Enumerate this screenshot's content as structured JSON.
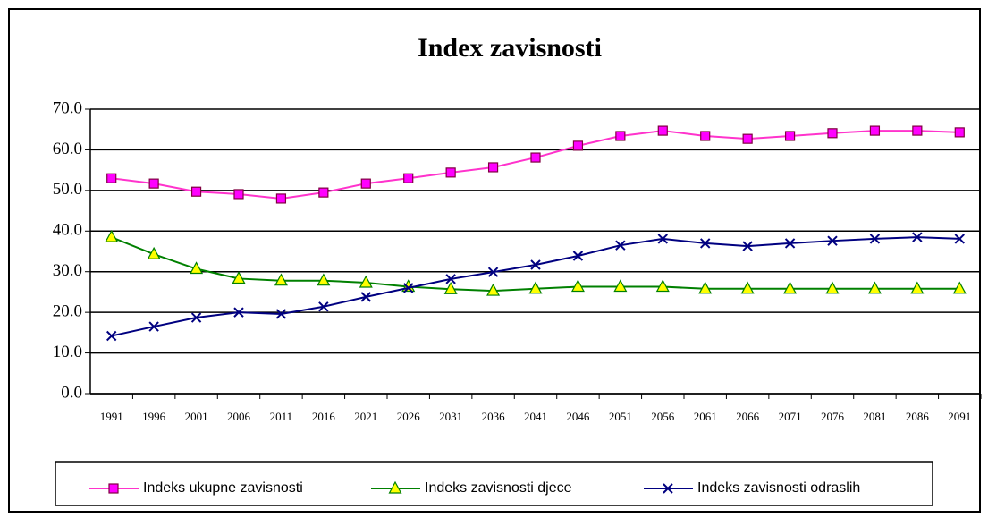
{
  "chart_data": {
    "type": "line",
    "title": "Index zavisnosti",
    "categories": [
      "1991",
      "1996",
      "2001",
      "2006",
      "2011",
      "2016",
      "2021",
      "2026",
      "2031",
      "2036",
      "2041",
      "2046",
      "2051",
      "2056",
      "2061",
      "2066",
      "2071",
      "2076",
      "2081",
      "2086",
      "2091"
    ],
    "series": [
      {
        "name": "Indeks ukupne zavisnosti",
        "color": "#ff33cc",
        "marker": "square",
        "marker_fill": "#ff00ff",
        "marker_stroke": "#800040",
        "values": [
          53.0,
          51.7,
          49.7,
          49.1,
          48.0,
          49.5,
          51.7,
          53.0,
          54.4,
          55.7,
          58.1,
          61.0,
          63.4,
          64.7,
          63.4,
          62.7,
          63.4,
          64.1,
          64.7,
          64.7,
          64.3
        ]
      },
      {
        "name": "Indeks zavisnosti djece",
        "color": "#008000",
        "marker": "triangle",
        "marker_fill": "#ffff00",
        "marker_stroke": "#008000",
        "values": [
          38.5,
          34.3,
          30.7,
          28.3,
          27.8,
          27.8,
          27.3,
          26.3,
          25.7,
          25.3,
          25.8,
          26.3,
          26.3,
          26.3,
          25.8,
          25.8,
          25.8,
          25.8,
          25.8,
          25.8,
          25.8
        ]
      },
      {
        "name": "Indeks zavisnosti odraslih",
        "color": "#000080",
        "marker": "x",
        "marker_fill": "none",
        "marker_stroke": "#000080",
        "values": [
          14.2,
          16.5,
          18.7,
          20.0,
          19.6,
          21.4,
          23.8,
          26.0,
          28.2,
          29.9,
          31.7,
          33.9,
          36.5,
          38.1,
          37.0,
          36.3,
          37.0,
          37.6,
          38.1,
          38.5,
          38.1
        ]
      }
    ],
    "ylim": [
      0,
      70
    ],
    "yticks": [
      {
        "value": 0,
        "label": "0.0"
      },
      {
        "value": 10,
        "label": "10.0"
      },
      {
        "value": 20,
        "label": "20.0"
      },
      {
        "value": 30,
        "label": "30.0"
      },
      {
        "value": 40,
        "label": "40.0"
      },
      {
        "value": 50,
        "label": "50.0"
      },
      {
        "value": 60,
        "label": "60.0"
      },
      {
        "value": 70,
        "label": "70.0"
      }
    ],
    "grid": true,
    "legend": "bottom"
  }
}
